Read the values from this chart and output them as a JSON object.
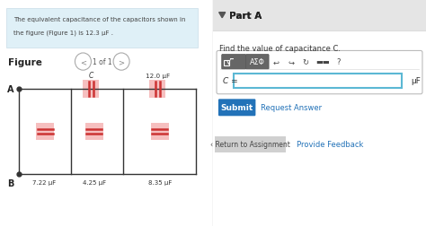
{
  "bg_color": "#ffffff",
  "left_bg": "#f7f7f7",
  "left_panel_bg": "#dff0f7",
  "left_panel_text_line1": "The equivalent capacitance of the capacitors shown in",
  "left_panel_text_line2": "the figure (Figure 1) is 12.3 μF .",
  "figure_label": "Figure",
  "page_label": "1 of 1",
  "capacitor_labels": [
    "C",
    "12.0 μF",
    "7.22 μF",
    "4.25 μF",
    "8.35 μF"
  ],
  "node_labels": [
    "A",
    "B"
  ],
  "cap_color": "#f5b8b8",
  "cap_line_color": "#cc3333",
  "right_panel_header": "Part A",
  "right_bg": "#f2f2f2",
  "header_bg": "#e5e5e5",
  "right_panel_question": "Find the value of capacitance C.",
  "submit_btn_color": "#2272b8",
  "submit_text": "Submit",
  "request_answer_text": "Request Answer",
  "return_text": "‹ Return to Assignment",
  "feedback_text": "Provide Feedback",
  "c_label": "C =",
  "mu_f": "μF",
  "input_border": "#5bb8d4",
  "divider_color": "#cccccc",
  "wire_color": "#333333",
  "triangle_color": "#555555",
  "toolbar_outer_border": "#c0c0c0",
  "toolbar_bg": "#ffffff",
  "btn1_color": "#777777",
  "btn2_color": "#777777",
  "return_btn_color": "#d0d0d0",
  "link_color": "#2272b8",
  "feedback_link_color": "#2272b8"
}
